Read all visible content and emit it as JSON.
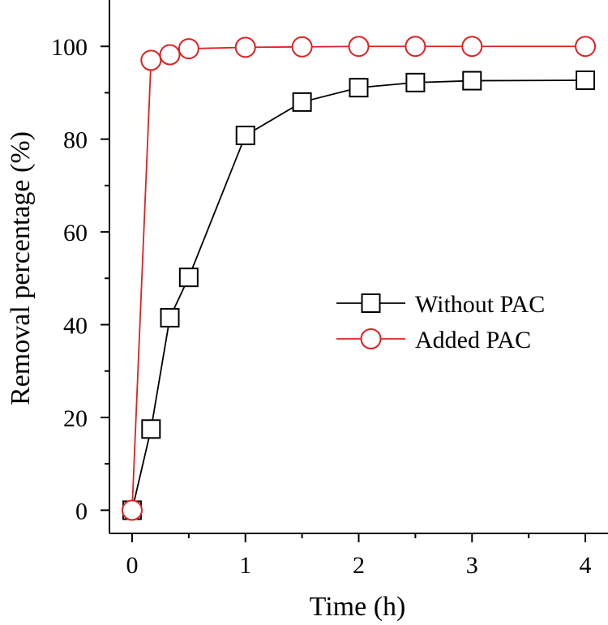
{
  "chart_data": {
    "type": "line",
    "title": "",
    "xlabel": "Time (h)",
    "ylabel": "Removal percentage (%)",
    "xlim": [
      -0.2,
      4.2
    ],
    "ylim": [
      -5,
      110
    ],
    "xticks": [
      0,
      1,
      2,
      3,
      4
    ],
    "xtick_labels": [
      "0",
      "1",
      "2",
      "3",
      "4"
    ],
    "x_minor_ticks": [
      0.5,
      1.5,
      2.5,
      3.5
    ],
    "yticks": [
      0,
      20,
      40,
      60,
      80,
      100
    ],
    "ytick_labels": [
      "0",
      "20",
      "40",
      "60",
      "80",
      "100"
    ],
    "y_minor_ticks": [
      10,
      30,
      50,
      70,
      90
    ],
    "grid": false,
    "legend_position": "center-right",
    "series": [
      {
        "name": "Without PAC",
        "marker": "square",
        "color": "#000000",
        "x": [
          0,
          0.167,
          0.333,
          0.5,
          1,
          1.5,
          2,
          2.5,
          3,
          4
        ],
        "y": [
          0,
          17.5,
          41.5,
          50.2,
          80.8,
          88.0,
          91.1,
          92.2,
          92.6,
          92.7
        ]
      },
      {
        "name": "Added PAC",
        "marker": "circle",
        "color": "#e02020",
        "x": [
          0,
          0.167,
          0.333,
          0.5,
          1,
          1.5,
          2,
          2.5,
          3,
          4
        ],
        "y": [
          0,
          97.0,
          98.2,
          99.5,
          99.8,
          99.9,
          100,
          100,
          100,
          100
        ]
      }
    ]
  }
}
